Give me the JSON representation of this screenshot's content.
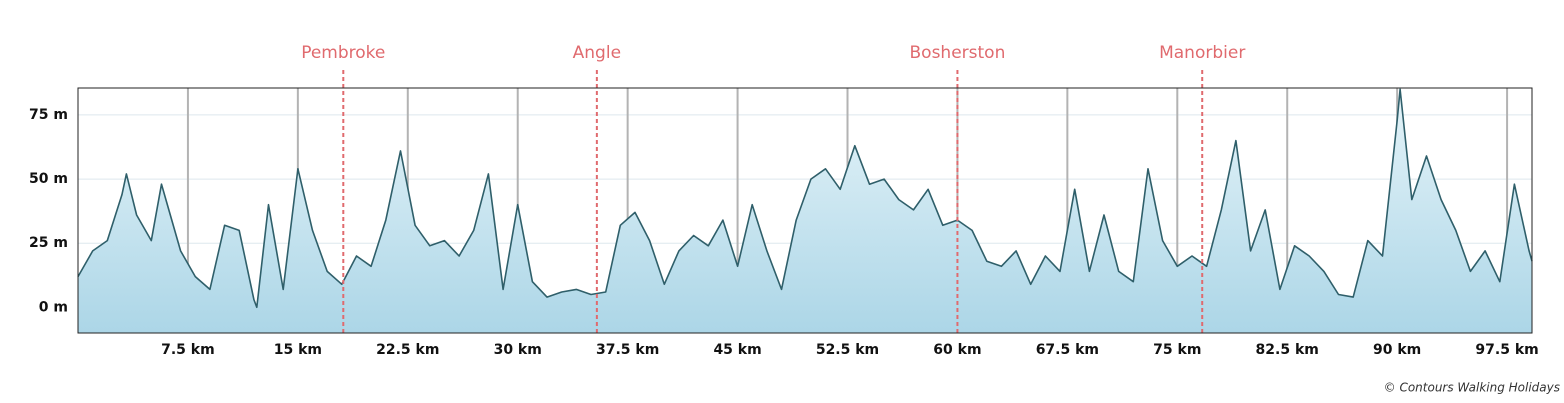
{
  "chart_data": {
    "type": "area",
    "x": [
      0,
      1,
      2,
      3,
      3.3,
      4,
      5,
      5.7,
      6,
      7,
      8,
      9,
      10,
      11,
      12,
      12.2,
      13,
      14,
      15,
      16,
      17,
      18,
      19,
      20,
      21,
      22,
      23,
      24,
      25,
      26,
      27,
      28,
      29,
      30,
      31,
      32,
      33,
      34,
      35,
      36,
      37,
      38,
      39,
      40,
      41,
      42,
      43,
      44,
      45,
      46,
      47,
      48,
      49,
      50,
      51,
      52,
      53,
      54,
      55,
      56,
      57,
      58,
      59,
      60,
      61,
      62,
      63,
      64,
      65,
      66,
      67,
      68,
      69,
      70,
      71,
      72,
      73,
      74,
      75,
      76,
      77,
      78,
      79,
      80,
      81,
      82,
      83,
      84,
      85,
      86,
      87,
      88,
      89,
      90,
      90.2,
      91,
      92,
      93,
      94,
      95,
      96,
      97,
      98,
      99,
      99.2
    ],
    "values": [
      12,
      22,
      26,
      44,
      52,
      36,
      26,
      48,
      42,
      22,
      12,
      7,
      32,
      30,
      3,
      0,
      40,
      7,
      54,
      30,
      14,
      9,
      20,
      16,
      34,
      61,
      32,
      24,
      26,
      20,
      30,
      52,
      7,
      40,
      10,
      4,
      6,
      7,
      5,
      6,
      32,
      37,
      26,
      9,
      22,
      28,
      24,
      34,
      16,
      40,
      22,
      7,
      34,
      50,
      54,
      46,
      63,
      48,
      50,
      42,
      38,
      46,
      32,
      34,
      30,
      18,
      16,
      22,
      9,
      20,
      14,
      46,
      14,
      36,
      14,
      10,
      54,
      26,
      16,
      20,
      16,
      38,
      65,
      22,
      38,
      7,
      24,
      20,
      14,
      5,
      4,
      26,
      20,
      73,
      85,
      42,
      59,
      42,
      30,
      14,
      22,
      10,
      48,
      22,
      18
    ],
    "color": "#2f5f6a",
    "fill": "#b4dbe9",
    "xlim": [
      0,
      99.2
    ],
    "ylim": [
      -10,
      85.5
    ],
    "xticks": [
      {
        "value": 7.5,
        "label": "7.5 km"
      },
      {
        "value": 15,
        "label": "15 km"
      },
      {
        "value": 22.5,
        "label": "22.5 km"
      },
      {
        "value": 30,
        "label": "30 km"
      },
      {
        "value": 37.5,
        "label": "37.5 km"
      },
      {
        "value": 45,
        "label": "45 km"
      },
      {
        "value": 52.5,
        "label": "52.5 km"
      },
      {
        "value": 60,
        "label": "60 km"
      },
      {
        "value": 67.5,
        "label": "67.5 km"
      },
      {
        "value": 75,
        "label": "75 km"
      },
      {
        "value": 82.5,
        "label": "82.5 km"
      },
      {
        "value": 90,
        "label": "90 km"
      },
      {
        "value": 97.5,
        "label": "97.5 km"
      }
    ],
    "yticks": [
      {
        "value": 0,
        "label": "0 m"
      },
      {
        "value": 25,
        "label": "25 m"
      },
      {
        "value": 50,
        "label": "50 m"
      },
      {
        "value": 75,
        "label": "75 m"
      }
    ],
    "grid": true,
    "markers": [
      {
        "name": "Pembroke",
        "x": 18.1
      },
      {
        "name": "Angle",
        "x": 35.4
      },
      {
        "name": "Bosherston",
        "x": 60
      },
      {
        "name": "Manorbier",
        "x": 76.7
      }
    ],
    "marker_color": "#e06a6e",
    "credit": "© Contours Walking Holidays"
  }
}
